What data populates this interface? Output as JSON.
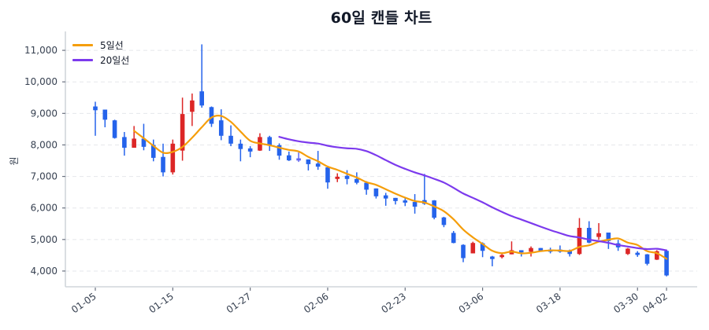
{
  "page": {
    "title": "60일 캔들 차트"
  },
  "legend": {
    "ma5_label": "5일선",
    "ma20_label": "20일선"
  },
  "axes": {
    "y_label": "원"
  },
  "colors": {
    "up": "#dc2626",
    "down": "#2563eb",
    "flat": "#6366f1",
    "ma5": "#f59e0b",
    "ma20": "#7c3aed",
    "grid": "#e5e7eb",
    "axis": "#d1d5db"
  },
  "chart_data": {
    "type": "candlestick",
    "title": "60일 캔들 차트",
    "xlabel": "",
    "ylabel": "원",
    "ylim": [
      3500,
      11600
    ],
    "grid": "horizontal dashed",
    "legend": {
      "position": "upper left",
      "entries": [
        "5일선",
        "20일선"
      ]
    },
    "yticks": [
      4000,
      5000,
      6000,
      7000,
      8000,
      9000,
      10000,
      11000
    ],
    "ytick_labels": [
      "4,000",
      "5,000",
      "6,000",
      "7,000",
      "8,000",
      "9,000",
      "10,000",
      "11,000"
    ],
    "xticks": [
      {
        "index": 0,
        "label": "01-05"
      },
      {
        "index": 8,
        "label": "01-15"
      },
      {
        "index": 16,
        "label": "01-27"
      },
      {
        "index": 24,
        "label": "02-06"
      },
      {
        "index": 32,
        "label": "02-23"
      },
      {
        "index": 40,
        "label": "03-06"
      },
      {
        "index": 48,
        "label": "03-18"
      },
      {
        "index": 56,
        "label": "03-30"
      },
      {
        "index": 59,
        "label": "04-02"
      }
    ],
    "ohlc_fields": [
      "open",
      "high",
      "low",
      "close"
    ],
    "candles": [
      [
        9220,
        9370,
        8290,
        9100
      ],
      [
        9120,
        9120,
        8560,
        8800
      ],
      [
        8780,
        8800,
        8200,
        8220
      ],
      [
        8250,
        8410,
        7660,
        7910
      ],
      [
        7910,
        8600,
        7910,
        8200
      ],
      [
        8200,
        8670,
        7830,
        7940
      ],
      [
        8000,
        8170,
        7480,
        7590
      ],
      [
        7620,
        8040,
        7000,
        7130
      ],
      [
        7130,
        8170,
        7060,
        8040
      ],
      [
        7820,
        9500,
        7500,
        8980
      ],
      [
        9050,
        9630,
        8600,
        9410
      ],
      [
        9700,
        11190,
        9180,
        9250
      ],
      [
        9200,
        9220,
        8570,
        8670
      ],
      [
        8780,
        9130,
        8150,
        8290
      ],
      [
        8290,
        8620,
        7960,
        8040
      ],
      [
        8040,
        8170,
        7480,
        7870
      ],
      [
        7890,
        7960,
        7610,
        7790
      ],
      [
        7820,
        8370,
        7810,
        8250
      ],
      [
        8250,
        8290,
        7810,
        8000
      ],
      [
        7990,
        8050,
        7530,
        7660
      ],
      [
        7670,
        7790,
        7490,
        7510
      ],
      [
        7540,
        7760,
        7460,
        7540
      ],
      [
        7540,
        7540,
        7190,
        7390
      ],
      [
        7410,
        7810,
        7210,
        7310
      ],
      [
        7290,
        7300,
        6610,
        6810
      ],
      [
        6920,
        7100,
        6820,
        6990
      ],
      [
        7020,
        7200,
        6750,
        6920
      ],
      [
        6920,
        7130,
        6750,
        6800
      ],
      [
        6800,
        6850,
        6420,
        6580
      ],
      [
        6620,
        6620,
        6300,
        6370
      ],
      [
        6400,
        6480,
        6070,
        6300
      ],
      [
        6320,
        6320,
        6110,
        6220
      ],
      [
        6240,
        6350,
        6060,
        6170
      ],
      [
        6190,
        6440,
        5820,
        6040
      ],
      [
        6250,
        7080,
        6100,
        6130
      ],
      [
        6240,
        6250,
        5640,
        5690
      ],
      [
        5700,
        5720,
        5390,
        5460
      ],
      [
        5210,
        5270,
        4880,
        4890
      ],
      [
        4830,
        4850,
        4280,
        4410
      ],
      [
        4560,
        4930,
        4560,
        4890
      ],
      [
        4880,
        4910,
        4440,
        4640
      ],
      [
        4460,
        4480,
        4150,
        4380
      ],
      [
        4480,
        4540,
        4400,
        4510
      ],
      [
        4530,
        4940,
        4530,
        4660
      ],
      [
        4660,
        4660,
        4460,
        4610
      ],
      [
        4610,
        4780,
        4460,
        4730
      ],
      [
        4730,
        4730,
        4630,
        4640
      ],
      [
        4680,
        4740,
        4560,
        4630
      ],
      [
        4680,
        4810,
        4580,
        4640
      ],
      [
        4660,
        4680,
        4460,
        4540
      ],
      [
        4540,
        5680,
        4510,
        5370
      ],
      [
        5370,
        5580,
        4880,
        4900
      ],
      [
        5080,
        5520,
        4990,
        5200
      ],
      [
        5220,
        5220,
        4700,
        4950
      ],
      [
        4880,
        4990,
        4640,
        4750
      ],
      [
        4540,
        4730,
        4510,
        4710
      ],
      [
        4580,
        4630,
        4450,
        4510
      ],
      [
        4530,
        4540,
        4180,
        4230
      ],
      [
        4360,
        4660,
        4350,
        4630
      ],
      [
        4640,
        4680,
        3830,
        3860
      ]
    ],
    "series": [
      {
        "name": "5일선",
        "color": "#f59e0b",
        "start_index": 4,
        "values": [
          8446,
          8214,
          7972,
          7754,
          7780,
          7936,
          8230,
          8562,
          8870,
          8920,
          8732,
          8424,
          8132,
          8048,
          7990,
          7914,
          7842,
          7792,
          7620,
          7482,
          7312,
          7208,
          7084,
          6966,
          6820,
          6732,
          6594,
          6454,
          6328,
          6220,
          6172,
          6050,
          5898,
          5642,
          5316,
          5068,
          4858,
          4642,
          4566,
          4616,
          4560,
          4578,
          4630,
          4654,
          4650,
          4636,
          4764,
          4816,
          4930,
          4992,
          5034,
          4902,
          4824,
          4630,
          4566,
          4388
        ]
      },
      {
        "name": "20일선",
        "color": "#7c3aed",
        "start_index": 19,
        "values": [
          8257,
          8178,
          8115,
          8073,
          8043,
          7974,
          7926,
          7893,
          7876,
          7803,
          7673,
          7517,
          7366,
          7241,
          7128,
          7033,
          6924,
          6807,
          6639,
          6460,
          6321,
          6178,
          6020,
          5876,
          5743,
          5633,
          5520,
          5406,
          5298,
          5201,
          5109,
          5063,
          4997,
          4948,
          4894,
          4825,
          4776,
          4728,
          4695,
          4706,
          4655
        ]
      }
    ]
  }
}
